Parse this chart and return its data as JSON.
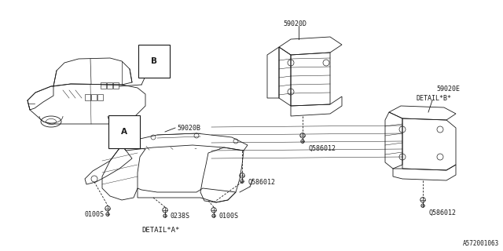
{
  "bg_color": "#ffffff",
  "line_color": "#1a1a1a",
  "gray_color": "#888888",
  "diagram_id": "A572001063",
  "labels": {
    "part_A": "A",
    "part_B": "B",
    "part_59020B": "59020B",
    "part_59020D": "59020D",
    "part_59020E": "59020E",
    "bolt_Q586012_1": "Q586012",
    "bolt_Q586012_2": "Q586012",
    "bolt_0100S_1": "0100S",
    "bolt_0100S_2": "0100S",
    "bolt_0238S": "0238S",
    "detail_a": "DETAIL*A*",
    "detail_b": "DETAIL*B*"
  },
  "font_size": 6.0,
  "lw": 0.6
}
